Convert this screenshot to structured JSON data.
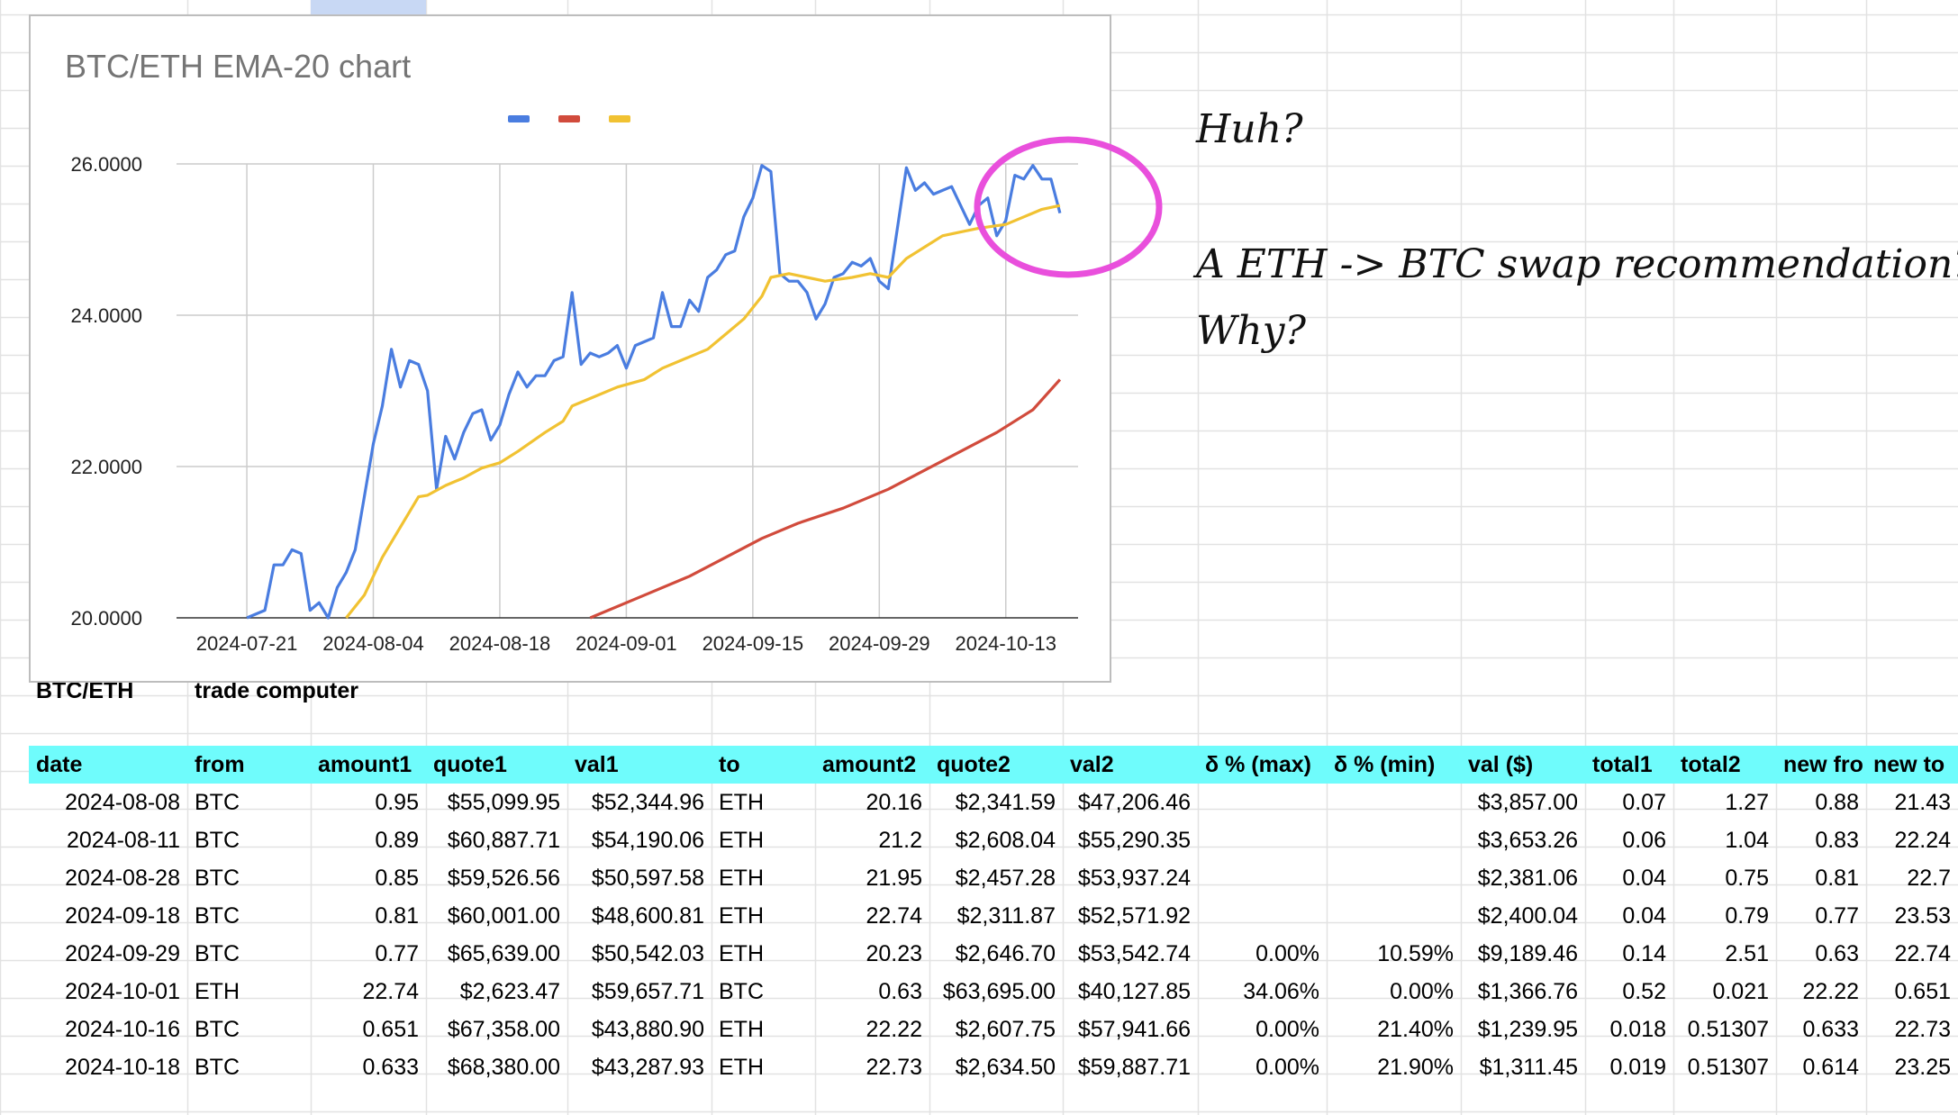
{
  "chart_data": {
    "type": "line",
    "title": "BTC/ETH EMA-20 chart",
    "x_tick_labels": [
      "2024-07-21",
      "2024-08-04",
      "2024-08-18",
      "2024-09-01",
      "2024-09-15",
      "2024-09-29",
      "2024-10-13"
    ],
    "y_tick_labels": [
      "26.0000",
      "24.0000",
      "22.0000",
      "20.0000"
    ],
    "ylim": [
      20,
      26
    ],
    "xlim": [
      "2024-07-19",
      "2024-10-21"
    ],
    "grid": true,
    "legend": "top-center, color swatches only",
    "series": [
      {
        "color": "#4a7de0",
        "points": [
          [
            "2024-07-21",
            20.0
          ],
          [
            "2024-07-23",
            20.1
          ],
          [
            "2024-07-24",
            20.7
          ],
          [
            "2024-07-25",
            20.7
          ],
          [
            "2024-07-26",
            20.9
          ],
          [
            "2024-07-27",
            20.85
          ],
          [
            "2024-07-28",
            20.1
          ],
          [
            "2024-07-29",
            20.2
          ],
          [
            "2024-07-30",
            20.0
          ],
          [
            "2024-07-31",
            20.4
          ],
          [
            "2024-08-01",
            20.6
          ],
          [
            "2024-08-02",
            20.9
          ],
          [
            "2024-08-03",
            21.6
          ],
          [
            "2024-08-04",
            22.3
          ],
          [
            "2024-08-05",
            22.8
          ],
          [
            "2024-08-06",
            23.55
          ],
          [
            "2024-08-07",
            23.05
          ],
          [
            "2024-08-08",
            23.4
          ],
          [
            "2024-08-09",
            23.35
          ],
          [
            "2024-08-10",
            23.0
          ],
          [
            "2024-08-11",
            21.7
          ],
          [
            "2024-08-12",
            22.4
          ],
          [
            "2024-08-13",
            22.1
          ],
          [
            "2024-08-14",
            22.45
          ],
          [
            "2024-08-15",
            22.7
          ],
          [
            "2024-08-16",
            22.75
          ],
          [
            "2024-08-17",
            22.35
          ],
          [
            "2024-08-18",
            22.55
          ],
          [
            "2024-08-19",
            22.95
          ],
          [
            "2024-08-20",
            23.25
          ],
          [
            "2024-08-21",
            23.05
          ],
          [
            "2024-08-22",
            23.2
          ],
          [
            "2024-08-23",
            23.2
          ],
          [
            "2024-08-24",
            23.4
          ],
          [
            "2024-08-25",
            23.45
          ],
          [
            "2024-08-26",
            24.3
          ],
          [
            "2024-08-27",
            23.35
          ],
          [
            "2024-08-28",
            23.5
          ],
          [
            "2024-08-29",
            23.45
          ],
          [
            "2024-08-30",
            23.5
          ],
          [
            "2024-08-31",
            23.6
          ],
          [
            "2024-09-01",
            23.3
          ],
          [
            "2024-09-02",
            23.6
          ],
          [
            "2024-09-03",
            23.65
          ],
          [
            "2024-09-04",
            23.7
          ],
          [
            "2024-09-05",
            24.3
          ],
          [
            "2024-09-06",
            23.85
          ],
          [
            "2024-09-07",
            23.85
          ],
          [
            "2024-09-08",
            24.2
          ],
          [
            "2024-09-09",
            24.05
          ],
          [
            "2024-09-10",
            24.5
          ],
          [
            "2024-09-11",
            24.6
          ],
          [
            "2024-09-12",
            24.8
          ],
          [
            "2024-09-13",
            24.85
          ],
          [
            "2024-09-14",
            25.3
          ],
          [
            "2024-09-15",
            25.55
          ],
          [
            "2024-09-16",
            25.98
          ],
          [
            "2024-09-17",
            25.9
          ],
          [
            "2024-09-18",
            24.55
          ],
          [
            "2024-09-19",
            24.45
          ],
          [
            "2024-09-20",
            24.45
          ],
          [
            "2024-09-21",
            24.3
          ],
          [
            "2024-09-22",
            23.95
          ],
          [
            "2024-09-23",
            24.15
          ],
          [
            "2024-09-24",
            24.5
          ],
          [
            "2024-09-25",
            24.55
          ],
          [
            "2024-09-26",
            24.7
          ],
          [
            "2024-09-27",
            24.65
          ],
          [
            "2024-09-28",
            24.75
          ],
          [
            "2024-09-29",
            24.45
          ],
          [
            "2024-09-30",
            24.35
          ],
          [
            "2024-10-01",
            25.15
          ],
          [
            "2024-10-02",
            25.95
          ],
          [
            "2024-10-03",
            25.65
          ],
          [
            "2024-10-04",
            25.75
          ],
          [
            "2024-10-05",
            25.6
          ],
          [
            "2024-10-06",
            25.65
          ],
          [
            "2024-10-07",
            25.7
          ],
          [
            "2024-10-08",
            25.45
          ],
          [
            "2024-10-09",
            25.2
          ],
          [
            "2024-10-10",
            25.45
          ],
          [
            "2024-10-11",
            25.55
          ],
          [
            "2024-10-12",
            25.05
          ],
          [
            "2024-10-13",
            25.25
          ],
          [
            "2024-10-14",
            25.85
          ],
          [
            "2024-10-15",
            25.8
          ],
          [
            "2024-10-16",
            25.98
          ],
          [
            "2024-10-17",
            25.8
          ],
          [
            "2024-10-18",
            25.8
          ],
          [
            "2024-10-19",
            25.35
          ]
        ]
      },
      {
        "color": "#d14b3c",
        "points": [
          [
            "2024-08-28",
            20.0
          ],
          [
            "2024-09-03",
            20.3
          ],
          [
            "2024-09-08",
            20.55
          ],
          [
            "2024-09-12",
            20.8
          ],
          [
            "2024-09-16",
            21.05
          ],
          [
            "2024-09-20",
            21.25
          ],
          [
            "2024-09-25",
            21.45
          ],
          [
            "2024-09-30",
            21.7
          ],
          [
            "2024-10-04",
            21.95
          ],
          [
            "2024-10-08",
            22.2
          ],
          [
            "2024-10-12",
            22.45
          ],
          [
            "2024-10-16",
            22.75
          ],
          [
            "2024-10-19",
            23.15
          ]
        ]
      },
      {
        "color": "#f1c232",
        "points": [
          [
            "2024-08-01",
            20.0
          ],
          [
            "2024-08-03",
            20.3
          ],
          [
            "2024-08-05",
            20.8
          ],
          [
            "2024-08-07",
            21.2
          ],
          [
            "2024-08-09",
            21.6
          ],
          [
            "2024-08-10",
            21.62
          ],
          [
            "2024-08-12",
            21.75
          ],
          [
            "2024-08-14",
            21.85
          ],
          [
            "2024-08-16",
            21.98
          ],
          [
            "2024-08-18",
            22.05
          ],
          [
            "2024-08-20",
            22.2
          ],
          [
            "2024-08-23",
            22.45
          ],
          [
            "2024-08-25",
            22.6
          ],
          [
            "2024-08-26",
            22.8
          ],
          [
            "2024-08-28",
            22.9
          ],
          [
            "2024-08-31",
            23.05
          ],
          [
            "2024-09-03",
            23.15
          ],
          [
            "2024-09-05",
            23.3
          ],
          [
            "2024-09-08",
            23.45
          ],
          [
            "2024-09-10",
            23.55
          ],
          [
            "2024-09-12",
            23.75
          ],
          [
            "2024-09-14",
            23.95
          ],
          [
            "2024-09-16",
            24.25
          ],
          [
            "2024-09-17",
            24.5
          ],
          [
            "2024-09-19",
            24.55
          ],
          [
            "2024-09-21",
            24.5
          ],
          [
            "2024-09-23",
            24.45
          ],
          [
            "2024-09-26",
            24.5
          ],
          [
            "2024-09-28",
            24.55
          ],
          [
            "2024-09-30",
            24.5
          ],
          [
            "2024-10-02",
            24.75
          ],
          [
            "2024-10-04",
            24.9
          ],
          [
            "2024-10-06",
            25.05
          ],
          [
            "2024-10-08",
            25.1
          ],
          [
            "2024-10-10",
            25.15
          ],
          [
            "2024-10-13",
            25.2
          ],
          [
            "2024-10-15",
            25.3
          ],
          [
            "2024-10-17",
            25.4
          ],
          [
            "2024-10-19",
            25.45
          ]
        ]
      }
    ]
  },
  "annotation": {
    "line1": "Huh?",
    "line2": "A ETH -> BTC swap recommendation?",
    "line3": "Why?",
    "circle_color": "#e94fdc"
  },
  "sheet": {
    "label_left": "BTC/ETH",
    "label_right": "trade computer",
    "header_color": "#6ffcfc",
    "columns": [
      "date",
      "from",
      "amount1",
      "quote1",
      "val1",
      "to",
      "amount2",
      "quote2",
      "val2",
      "δ % (max)",
      "δ % (min)",
      "val ($)",
      "total1",
      "total2",
      "new fro",
      "new to"
    ],
    "rows": [
      [
        "2024-08-08",
        "BTC",
        "0.95",
        "$55,099.95",
        "$52,344.96",
        "ETH",
        "20.16",
        "$2,341.59",
        "$47,206.46",
        "",
        "",
        "$3,857.00",
        "0.07",
        "1.27",
        "0.88",
        "21.43"
      ],
      [
        "2024-08-11",
        "BTC",
        "0.89",
        "$60,887.71",
        "$54,190.06",
        "ETH",
        "21.2",
        "$2,608.04",
        "$55,290.35",
        "",
        "",
        "$3,653.26",
        "0.06",
        "1.04",
        "0.83",
        "22.24"
      ],
      [
        "2024-08-28",
        "BTC",
        "0.85",
        "$59,526.56",
        "$50,597.58",
        "ETH",
        "21.95",
        "$2,457.28",
        "$53,937.24",
        "",
        "",
        "$2,381.06",
        "0.04",
        "0.75",
        "0.81",
        "22.7"
      ],
      [
        "2024-09-18",
        "BTC",
        "0.81",
        "$60,001.00",
        "$48,600.81",
        "ETH",
        "22.74",
        "$2,311.87",
        "$52,571.92",
        "",
        "",
        "$2,400.04",
        "0.04",
        "0.79",
        "0.77",
        "23.53"
      ],
      [
        "2024-09-29",
        "BTC",
        "0.77",
        "$65,639.00",
        "$50,542.03",
        "ETH",
        "20.23",
        "$2,646.70",
        "$53,542.74",
        "0.00%",
        "10.59%",
        "$9,189.46",
        "0.14",
        "2.51",
        "0.63",
        "22.74"
      ],
      [
        "2024-10-01",
        "ETH",
        "22.74",
        "$2,623.47",
        "$59,657.71",
        "BTC",
        "0.63",
        "$63,695.00",
        "$40,127.85",
        "34.06%",
        "0.00%",
        "$1,366.76",
        "0.52",
        "0.021",
        "22.22",
        "0.651"
      ],
      [
        "2024-10-16",
        "BTC",
        "0.651",
        "$67,358.00",
        "$43,880.90",
        "ETH",
        "22.22",
        "$2,607.75",
        "$57,941.66",
        "0.00%",
        "21.40%",
        "$1,239.95",
        "0.018",
        "0.51307",
        "0.633",
        "22.73"
      ],
      [
        "2024-10-18",
        "BTC",
        "0.633",
        "$68,380.00",
        "$43,287.93",
        "ETH",
        "22.73",
        "$2,634.50",
        "$59,887.71",
        "0.00%",
        "21.90%",
        "$1,311.45",
        "0.019",
        "0.51307",
        "0.614",
        "23.25"
      ]
    ]
  }
}
